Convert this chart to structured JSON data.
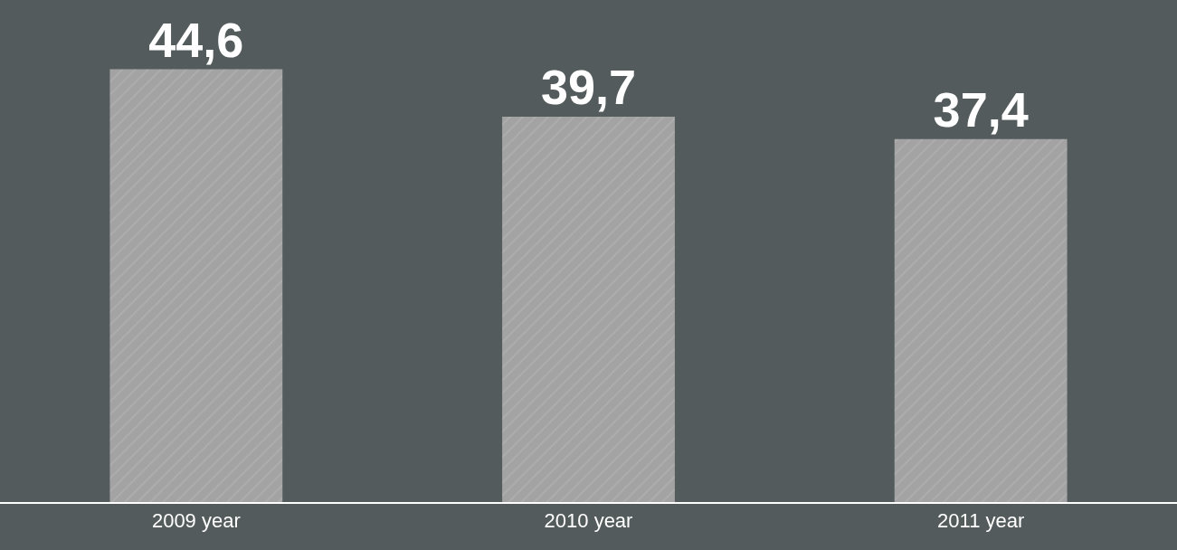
{
  "chart_data": {
    "type": "bar",
    "categories": [
      "2009 year",
      "2010 year",
      "2011 year"
    ],
    "values": [
      44.6,
      39.7,
      37.4
    ],
    "value_labels": [
      "44,6",
      "39,7",
      "37,4"
    ],
    "color": "#a3a3a3",
    "grid": false,
    "legend": false
  }
}
